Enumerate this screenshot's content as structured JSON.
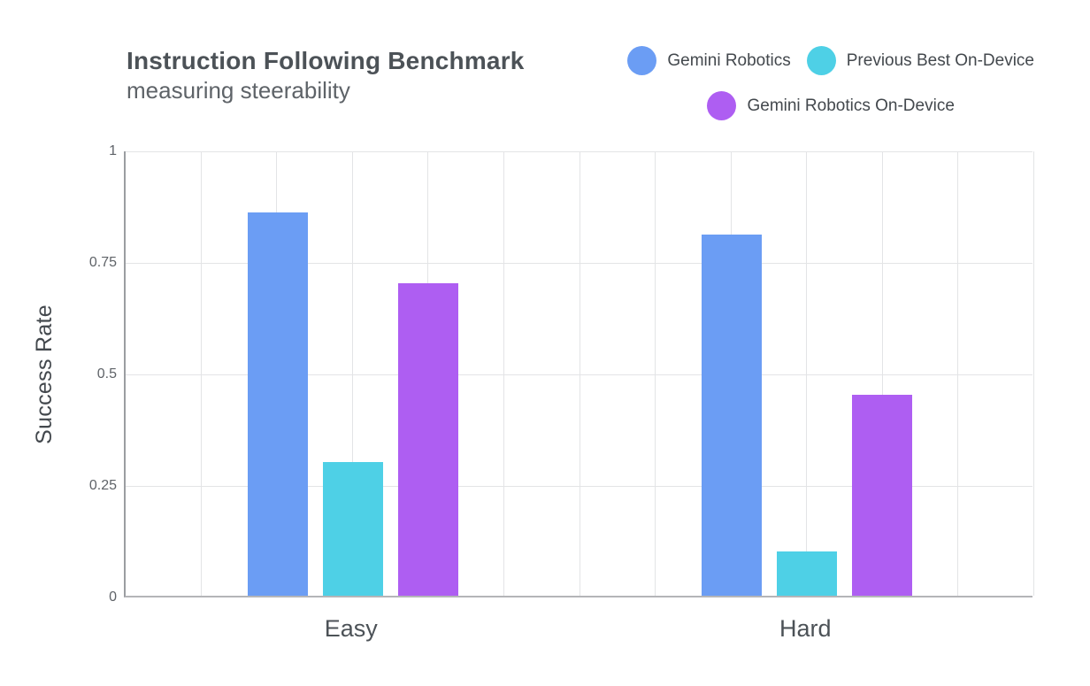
{
  "header": {
    "title": "Instruction Following Benchmark",
    "subtitle": "measuring steerability"
  },
  "legend": {
    "items": [
      {
        "label": "Gemini Robotics",
        "color": "#6B9DF4"
      },
      {
        "label": "Previous Best On-Device",
        "color": "#4ED0E6"
      },
      {
        "label": "Gemini Robotics On-Device",
        "color": "#AE5EF2"
      }
    ]
  },
  "chart_data": {
    "type": "bar",
    "title": "Instruction Following Benchmark",
    "subtitle": "measuring steerability",
    "categories": [
      "Easy",
      "Hard"
    ],
    "series": [
      {
        "name": "Gemini Robotics",
        "color": "#6B9DF4",
        "values": [
          0.86,
          0.81
        ]
      },
      {
        "name": "Previous Best On-Device",
        "color": "#4ED0E6",
        "values": [
          0.3,
          0.1
        ]
      },
      {
        "name": "Gemini Robotics On-Device",
        "color": "#AE5EF2",
        "values": [
          0.7,
          0.45
        ]
      }
    ],
    "xlabel": "",
    "ylabel": "Success Rate",
    "ylim": [
      0,
      1
    ],
    "yticks": [
      0,
      0.25,
      0.5,
      0.75,
      1
    ],
    "ytick_labels": [
      "0",
      "0.25",
      "0.5",
      "0.75",
      "1"
    ],
    "x_gridline_columns": 12,
    "grid": true,
    "legend_position": "top-right",
    "background": "#ffffff"
  }
}
